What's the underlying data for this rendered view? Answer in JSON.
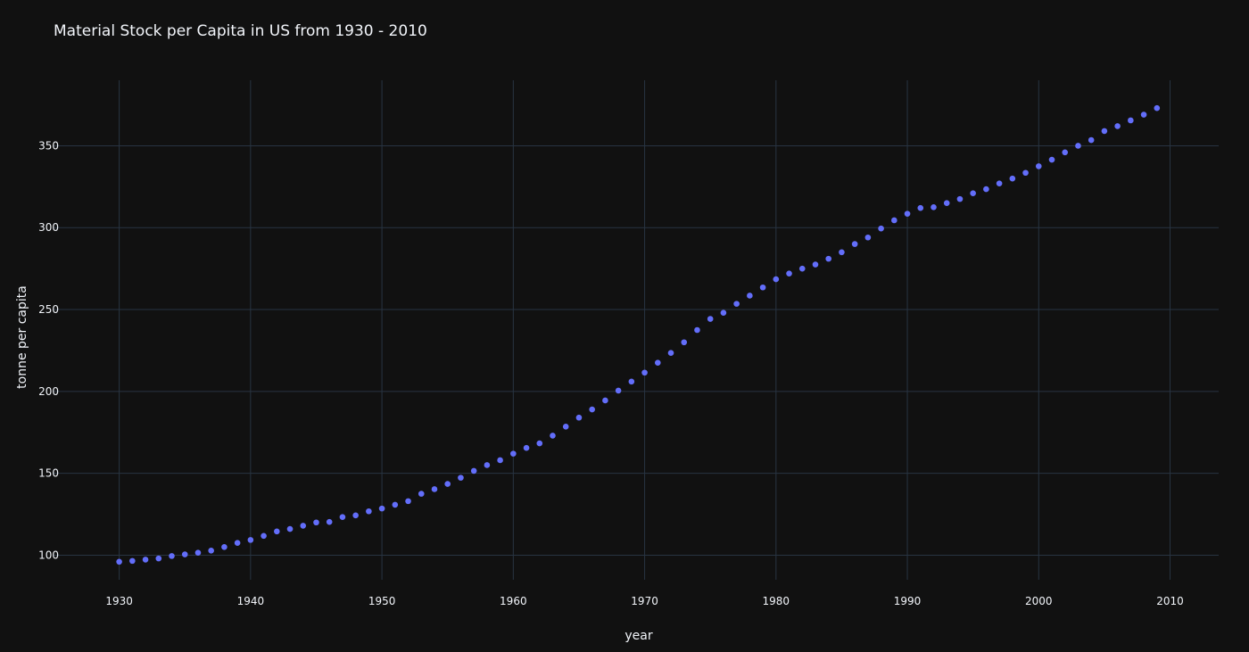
{
  "chart_data": {
    "type": "scatter",
    "title": "Material Stock per Capita in US from 1930 - 2010",
    "xlabel": "year",
    "ylabel": "tonne per capita",
    "xlim": [
      1925,
      2013.7
    ],
    "ylim": [
      85,
      390
    ],
    "x_ticks": [
      1930,
      1940,
      1950,
      1960,
      1970,
      1980,
      1990,
      2000,
      2010
    ],
    "y_ticks": [
      100,
      150,
      200,
      250,
      300,
      350
    ],
    "grid": true,
    "legend": "none",
    "marker_color": "#636efa",
    "background_color": "#111111",
    "grid_color": "#283442",
    "text_color": "#f2f5fa",
    "series": [
      {
        "x": [
          1930,
          1931,
          1932,
          1933,
          1934,
          1935,
          1936,
          1937,
          1938,
          1939,
          1940,
          1941,
          1942,
          1943,
          1944,
          1945,
          1946,
          1947,
          1948,
          1949,
          1950,
          1951,
          1952,
          1953,
          1954,
          1955,
          1956,
          1957,
          1958,
          1959,
          1960,
          1961,
          1962,
          1963,
          1964,
          1965,
          1966,
          1967,
          1968,
          1969,
          1970,
          1971,
          1972,
          1973,
          1974,
          1975,
          1976,
          1977,
          1978,
          1979,
          1980,
          1981,
          1982,
          1983,
          1984,
          1985,
          1986,
          1987,
          1988,
          1989,
          1990,
          1991,
          1992,
          1993,
          1994,
          1995,
          1996,
          1997,
          1998,
          1999,
          2000,
          2001,
          2002,
          2003,
          2004,
          2005,
          2006,
          2007,
          2008,
          2009
        ],
        "y": [
          96,
          96.5,
          97.3,
          98,
          99.5,
          100.5,
          101.5,
          102.8,
          105,
          107.5,
          109.3,
          111.8,
          114.5,
          116,
          118,
          120,
          120.3,
          123.3,
          124.3,
          126.8,
          128.5,
          130.8,
          133,
          137.5,
          140.3,
          143.5,
          147.3,
          151.5,
          155,
          158,
          162,
          165.5,
          168.3,
          173,
          178.5,
          184,
          189,
          194.5,
          200.5,
          206,
          211.5,
          217.5,
          223.5,
          230,
          237.5,
          244.3,
          248,
          253.5,
          258.5,
          263.5,
          268.5,
          272,
          275,
          277.5,
          281,
          285,
          290,
          294,
          299.5,
          304.5,
          308.5,
          312,
          312.5,
          315,
          317.5,
          321,
          323.5,
          327,
          330,
          333.5,
          337.5,
          341.5,
          346,
          350,
          353.5,
          359,
          362,
          365.5,
          369,
          373
        ]
      }
    ]
  }
}
